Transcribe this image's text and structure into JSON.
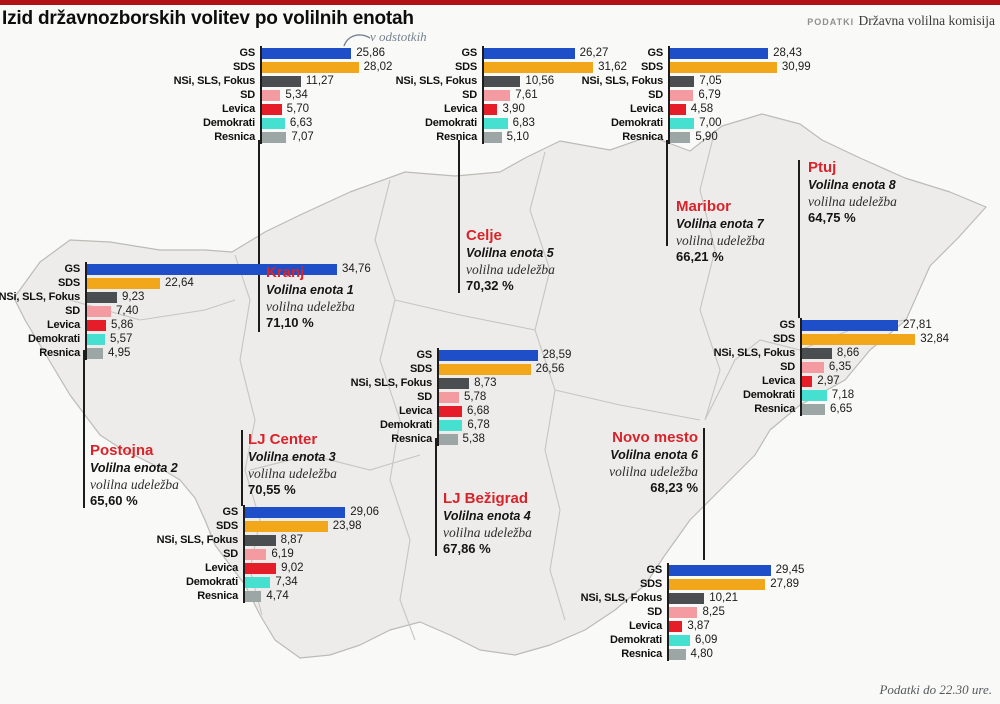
{
  "header": {
    "title": "Izid državnozborskih volitev po volilnih enotah",
    "source_label": "PODATKI",
    "source": "Državna volilna komisija",
    "unit_note": "v odstotkih"
  },
  "footer": {
    "note": "Podatki do 22.30 ure."
  },
  "parties": [
    "GS",
    "SDS",
    "NSi, SLS, Fokus",
    "SD",
    "Levica",
    "Demokrati",
    "Resnica"
  ],
  "party_colors": [
    "#1e4fc8",
    "#f2a71b",
    "#4a4e50",
    "#f49ba1",
    "#e51d28",
    "#45e0cf",
    "#9ca6a5"
  ],
  "map_colors": {
    "fill": "#edecea",
    "border": "#bcbbb6"
  },
  "chart_data": [
    {
      "type": "bar",
      "title": "Kranj",
      "subtitle": "Volilna enota 1",
      "turnout_label": "volilna udeležba",
      "turnout": "71,10 %",
      "categories": [
        "GS",
        "SDS",
        "NSi, SLS, Fokus",
        "SD",
        "Levica",
        "Demokrati",
        "Resnica"
      ],
      "values": [
        25.86,
        28.02,
        11.27,
        5.34,
        5.7,
        6.63,
        7.07
      ],
      "value_labels": [
        "25,86",
        "28,02",
        "11,27",
        "5,34",
        "5,70",
        "6,63",
        "7,07"
      ]
    },
    {
      "type": "bar",
      "title": "Celje",
      "subtitle": "Volilna enota 5",
      "turnout_label": "volilna udeležba",
      "turnout": "70,32 %",
      "categories": [
        "GS",
        "SDS",
        "NSi, SLS, Fokus",
        "SD",
        "Levica",
        "Demokrati",
        "Resnica"
      ],
      "values": [
        26.27,
        31.62,
        10.56,
        7.61,
        3.9,
        6.83,
        5.1
      ],
      "value_labels": [
        "26,27",
        "31,62",
        "10,56",
        "7,61",
        "3,90",
        "6,83",
        "5,10"
      ]
    },
    {
      "type": "bar",
      "title": "Maribor",
      "subtitle": "Volilna enota 7",
      "turnout_label": "volilna udeležba",
      "turnout": "66,21 %",
      "categories": [
        "GS",
        "SDS",
        "NSi, SLS, Fokus",
        "SD",
        "Levica",
        "Demokrati",
        "Resnica"
      ],
      "values": [
        28.43,
        30.99,
        7.05,
        6.79,
        4.58,
        7.0,
        5.9
      ],
      "value_labels": [
        "28,43",
        "30,99",
        "7,05",
        "6,79",
        "4,58",
        "7,00",
        "5,90"
      ]
    },
    {
      "type": "bar",
      "title": "Postojna",
      "subtitle": "Volilna enota 2",
      "turnout_label": "volilna udeležba",
      "turnout": "65,60 %",
      "categories": [
        "GS",
        "SDS",
        "NSi, SLS, Fokus",
        "SD",
        "Levica",
        "Demokrati",
        "Resnica"
      ],
      "values": [
        34.76,
        22.64,
        9.23,
        7.4,
        5.86,
        5.57,
        4.95
      ],
      "value_labels": [
        "34,76",
        "22,64",
        "9,23",
        "7,40",
        "5,86",
        "5,57",
        "4,95"
      ]
    },
    {
      "type": "bar",
      "title": "LJ Bežigrad",
      "subtitle": "Volilna enota 4",
      "turnout_label": "volilna udeležba",
      "turnout": "67,86 %",
      "categories": [
        "GS",
        "SDS",
        "NSi, SLS, Fokus",
        "SD",
        "Levica",
        "Demokrati",
        "Resnica"
      ],
      "values": [
        28.59,
        26.56,
        8.73,
        5.78,
        6.68,
        6.78,
        5.38
      ],
      "value_labels": [
        "28,59",
        "26,56",
        "8,73",
        "5,78",
        "6,68",
        "6,78",
        "5,38"
      ]
    },
    {
      "type": "bar",
      "title": "Ptuj",
      "subtitle": "Volilna enota 8",
      "turnout_label": "volilna udeležba",
      "turnout": "64,75 %",
      "categories": [
        "GS",
        "SDS",
        "NSi, SLS, Fokus",
        "SD",
        "Levica",
        "Demokrati",
        "Resnica"
      ],
      "values": [
        27.81,
        32.84,
        8.66,
        6.35,
        2.97,
        7.18,
        6.65
      ],
      "value_labels": [
        "27,81",
        "32,84",
        "8,66",
        "6,35",
        "2,97",
        "7,18",
        "6,65"
      ]
    },
    {
      "type": "bar",
      "title": "LJ Center",
      "subtitle": "Volilna enota 3",
      "turnout_label": "volilna udeležba",
      "turnout": "70,55 %",
      "categories": [
        "GS",
        "SDS",
        "NSi, SLS, Fokus",
        "SD",
        "Levica",
        "Demokrati",
        "Resnica"
      ],
      "values": [
        29.06,
        23.98,
        8.87,
        6.19,
        9.02,
        7.34,
        4.74
      ],
      "value_labels": [
        "29,06",
        "23,98",
        "8,87",
        "6,19",
        "9,02",
        "7,34",
        "4,74"
      ]
    },
    {
      "type": "bar",
      "title": "Novo mesto",
      "subtitle": "Volilna enota 6",
      "turnout_label": "volilna udeležba",
      "turnout": "68,23 %",
      "categories": [
        "GS",
        "SDS",
        "NSi, SLS, Fokus",
        "SD",
        "Levica",
        "Demokrati",
        "Resnica"
      ],
      "values": [
        29.45,
        27.89,
        10.21,
        8.25,
        3.87,
        6.09,
        4.8
      ],
      "value_labels": [
        "29,45",
        "27,89",
        "10,21",
        "8,25",
        "3,87",
        "6,09",
        "4,80"
      ]
    }
  ]
}
